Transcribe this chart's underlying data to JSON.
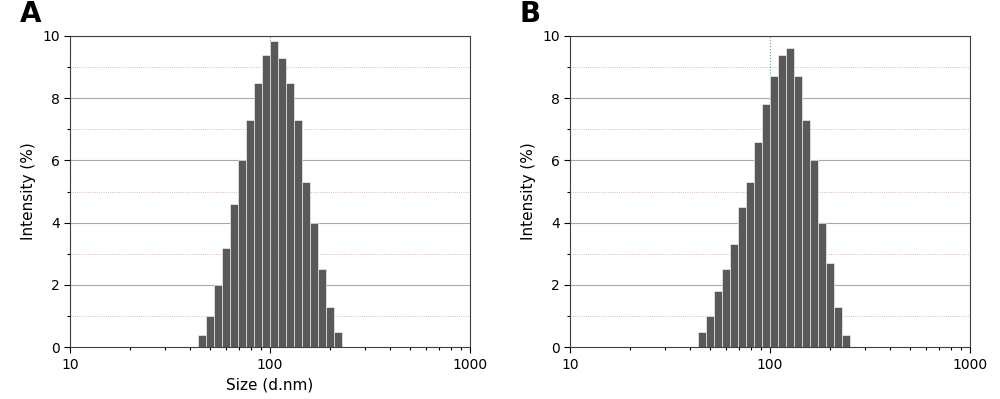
{
  "panel_A_label": "A",
  "panel_B_label": "B",
  "xlabel": "Size (d.nm)",
  "ylabel": "Intensity (%)",
  "ylim": [
    0,
    10
  ],
  "yticks": [
    0,
    2,
    4,
    6,
    8,
    10
  ],
  "bar_color": "#595959",
  "bar_edgecolor": "#ffffff",
  "background_color": "#ffffff",
  "grid_h_major_color": "#aaaaaa",
  "grid_h_minor_color": "#c8a0c8",
  "grid_v_color": "#70aa70",
  "plot_A": {
    "log_centers": [
      1.5,
      1.54,
      1.58,
      1.62,
      1.66,
      1.7,
      1.74,
      1.78,
      1.82,
      1.86,
      1.9,
      1.94,
      1.98,
      2.02,
      2.06,
      2.1,
      2.14,
      2.18,
      2.22,
      2.26,
      2.3,
      2.34,
      2.38,
      2.42,
      2.46
    ],
    "heights": [
      0.0,
      0.0,
      0.0,
      0.0,
      0.4,
      1.0,
      2.0,
      3.2,
      4.6,
      6.0,
      7.3,
      8.5,
      9.4,
      9.85,
      9.3,
      8.5,
      7.3,
      5.3,
      4.0,
      2.5,
      1.3,
      0.5,
      0.0,
      0.0,
      0.0
    ]
  },
  "plot_B": {
    "log_centers": [
      1.5,
      1.54,
      1.58,
      1.62,
      1.66,
      1.7,
      1.74,
      1.78,
      1.82,
      1.86,
      1.9,
      1.94,
      1.98,
      2.02,
      2.06,
      2.1,
      2.14,
      2.18,
      2.22,
      2.26,
      2.3,
      2.34,
      2.38,
      2.42,
      2.46,
      2.5,
      2.54
    ],
    "heights": [
      0.0,
      0.0,
      0.0,
      0.0,
      0.5,
      1.0,
      1.8,
      2.5,
      3.3,
      4.5,
      5.3,
      6.6,
      7.8,
      8.7,
      9.4,
      9.6,
      8.7,
      7.3,
      6.0,
      4.0,
      2.7,
      1.3,
      0.4,
      0.0,
      0.0,
      0.0,
      0.0
    ]
  },
  "panel_label_fontsize": 20,
  "axis_label_fontsize": 11,
  "tick_fontsize": 10
}
